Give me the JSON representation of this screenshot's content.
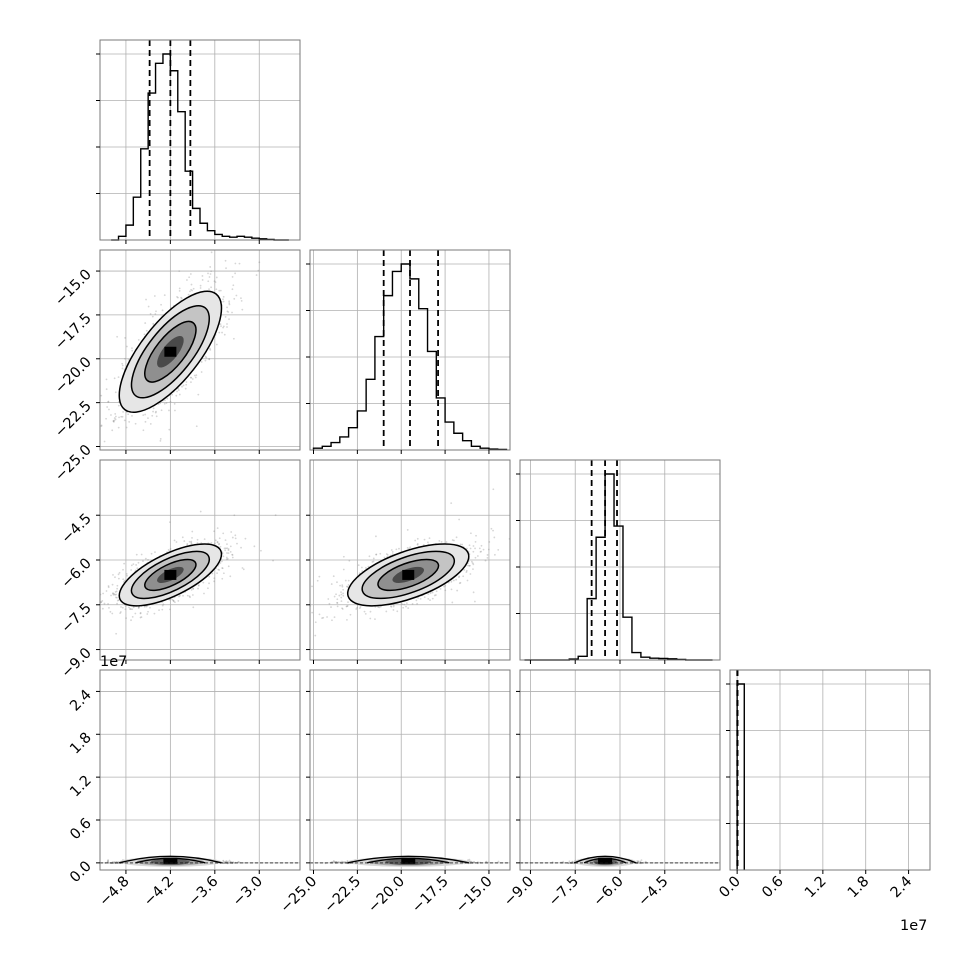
{
  "chart_data": {
    "type": "corner",
    "grid": true,
    "colors": {
      "frame": "#7a7a7a",
      "grid": "#b0b0b0",
      "hist": "#000000",
      "quantile": "#000000",
      "points": "#8a8a8a",
      "contour": "#000000"
    },
    "quantiles": [
      0.16,
      0.5,
      0.84
    ],
    "params": [
      {
        "range": [
          -5.15,
          -2.45
        ],
        "ticks": [
          -4.8,
          -4.2,
          -3.6,
          -3.0
        ],
        "tick_labels": [
          "−4.8",
          "−4.2",
          "−3.6",
          "−3.0"
        ],
        "quantile_values": [
          -4.48,
          -4.2,
          -3.93
        ],
        "mean": -4.2,
        "sd": 0.3,
        "hist_x": [
          -5.0,
          -4.9,
          -4.8,
          -4.7,
          -4.6,
          -4.5,
          -4.4,
          -4.3,
          -4.2,
          -4.1,
          -4.0,
          -3.9,
          -3.8,
          -3.7,
          -3.6,
          -3.5,
          -3.4,
          -3.3,
          -3.2,
          -3.1,
          -3.0,
          -2.9,
          -2.8,
          -2.7,
          -2.6
        ],
        "hist_y": [
          0,
          0.02,
          0.08,
          0.23,
          0.49,
          0.79,
          0.95,
          1.0,
          0.91,
          0.69,
          0.37,
          0.17,
          0.09,
          0.05,
          0.03,
          0.02,
          0.015,
          0.02,
          0.015,
          0.01,
          0.006,
          0.003,
          0,
          0,
          0
        ]
      },
      {
        "range": [
          -25.2,
          -13.8
        ],
        "ticks": [
          -25.0,
          -22.5,
          -20.0,
          -17.5,
          -15.0
        ],
        "tick_labels": [
          "−25.0",
          "−22.5",
          "−20.0",
          "−17.5",
          "−15.0"
        ],
        "quantile_values": [
          -21.0,
          -19.5,
          -17.9
        ],
        "mean": -19.6,
        "sd": 1.5,
        "hist_x": [
          -25.0,
          -24.5,
          -24.0,
          -23.5,
          -23.0,
          -22.5,
          -22.0,
          -21.5,
          -21.0,
          -20.5,
          -20.0,
          -19.5,
          -19.0,
          -18.5,
          -18.0,
          -17.5,
          -17.0,
          -16.5,
          -16.0,
          -15.5,
          -15.0,
          -14.5,
          -14.0
        ],
        "hist_y": [
          0.01,
          0.02,
          0.04,
          0.07,
          0.12,
          0.21,
          0.38,
          0.61,
          0.83,
          0.96,
          1.0,
          0.92,
          0.76,
          0.53,
          0.28,
          0.15,
          0.09,
          0.05,
          0.02,
          0.01,
          0.005,
          0.003,
          0
        ]
      },
      {
        "range": [
          -9.35,
          -2.65
        ],
        "ticks": [
          -9.0,
          -7.5,
          -6.0,
          -4.5
        ],
        "tick_labels": [
          "−9.0",
          "−7.5",
          "−6.0",
          "−4.5"
        ],
        "quantile_values": [
          -6.95,
          -6.5,
          -6.1
        ],
        "mean": -6.5,
        "sd": 0.45,
        "hist_x": [
          -9.2,
          -8.9,
          -8.6,
          -8.3,
          -8.0,
          -7.7,
          -7.4,
          -7.1,
          -6.8,
          -6.5,
          -6.2,
          -5.9,
          -5.6,
          -5.3,
          -5.0,
          -4.7,
          -4.4,
          -4.1,
          -3.8,
          -3.5,
          -3.2,
          -2.9
        ],
        "hist_y": [
          0,
          0,
          0,
          0,
          0,
          0.005,
          0.02,
          0.33,
          0.66,
          1.0,
          0.72,
          0.23,
          0.04,
          0.015,
          0.01,
          0.008,
          0.006,
          0.003,
          0,
          0,
          0,
          0
        ]
      },
      {
        "range": [
          -0.1,
          2.7
        ],
        "ticks": [
          0.0,
          0.6,
          1.2,
          1.8,
          2.4
        ],
        "tick_labels": [
          "0.0",
          "0.6",
          "1.2",
          "1.8",
          "2.4"
        ],
        "offset_label": "1e7",
        "quantile_values": [
          0.002,
          0.003,
          0.004
        ],
        "hist_x": [
          0.0,
          0.1
        ],
        "hist_y": [
          1.0,
          0
        ]
      }
    ],
    "scatter": [
      {
        "col": 0,
        "row": 1,
        "rho": 0.72,
        "count": 2600
      },
      {
        "col": 0,
        "row": 2,
        "rho": 0.67,
        "count": 2600
      },
      {
        "col": 1,
        "row": 2,
        "rho": 0.6,
        "count": 2600
      },
      {
        "col": 0,
        "row": 3,
        "rho": 0.0,
        "count": 1500,
        "y_band": [
          0.0,
          0.08
        ]
      },
      {
        "col": 1,
        "row": 3,
        "rho": 0.0,
        "count": 1500,
        "y_band": [
          0.0,
          0.08
        ]
      },
      {
        "col": 2,
        "row": 3,
        "rho": 0.0,
        "count": 1500,
        "y_band": [
          0.0,
          0.08
        ]
      }
    ],
    "offset_labels": [
      {
        "axis": "y-left",
        "row": 3,
        "text": "1e7"
      },
      {
        "axis": "x-bottom",
        "col": 3,
        "text": "1e7"
      }
    ]
  }
}
